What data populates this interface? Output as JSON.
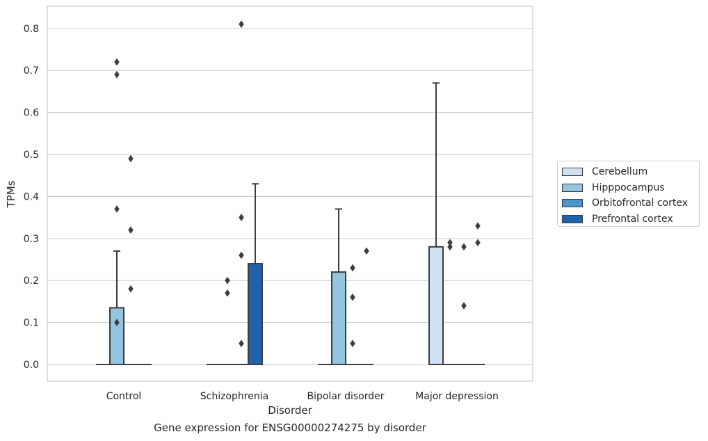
{
  "caption": "Gene expression for ENSG00000274275 by disorder",
  "chart_data": {
    "type": "box",
    "xlabel": "Disorder",
    "ylabel": "TPMs",
    "ylim": [
      -0.04,
      0.85
    ],
    "yticks": [
      "0.0",
      "0.1",
      "0.2",
      "0.3",
      "0.4",
      "0.5",
      "0.6",
      "0.7",
      "0.8"
    ],
    "ytick_values": [
      0.0,
      0.1,
      0.2,
      0.3,
      0.4,
      0.5,
      0.6,
      0.7,
      0.8
    ],
    "grid": true,
    "legend_position": "right",
    "categories": [
      "Control",
      "Schizophrenia",
      "Bipolar disorder",
      "Major depression"
    ],
    "series": [
      {
        "name": "Cerebellum",
        "color": "#d0e1f2",
        "boxes": [
          {
            "q1": 0,
            "median": 0,
            "q3": 0,
            "whislo": 0,
            "whishi": 0,
            "fliers": []
          },
          {
            "q1": 0,
            "median": 0,
            "q3": 0,
            "whislo": 0,
            "whishi": 0,
            "fliers": []
          },
          {
            "q1": 0,
            "median": 0,
            "q3": 0,
            "whislo": 0,
            "whishi": 0,
            "fliers": []
          },
          {
            "q1": 0,
            "median": 0,
            "q3": 0.28,
            "whislo": 0,
            "whishi": 0.67,
            "fliers": []
          }
        ]
      },
      {
        "name": "Hipppocampus",
        "color": "#94c4df",
        "boxes": [
          {
            "q1": 0,
            "median": 0,
            "q3": 0.135,
            "whislo": 0,
            "whishi": 0.27,
            "fliers": [
              0.69,
              0.72,
              0.37,
              0.1
            ]
          },
          {
            "q1": 0,
            "median": 0,
            "q3": 0,
            "whislo": 0,
            "whishi": 0,
            "fliers": [
              0.2,
              0.17
            ]
          },
          {
            "q1": 0,
            "median": 0,
            "q3": 0.22,
            "whislo": 0,
            "whishi": 0.37,
            "fliers": []
          },
          {
            "q1": 0,
            "median": 0,
            "q3": 0,
            "whislo": 0,
            "whishi": 0,
            "fliers": [
              0.28,
              0.29
            ]
          }
        ]
      },
      {
        "name": "Orbitofrontal cortex",
        "color": "#4a98c9",
        "boxes": [
          {
            "q1": 0,
            "median": 0,
            "q3": 0,
            "whislo": 0,
            "whishi": 0,
            "fliers": [
              0.49,
              0.32,
              0.18
            ]
          },
          {
            "q1": 0,
            "median": 0,
            "q3": 0,
            "whislo": 0,
            "whishi": 0,
            "fliers": [
              0.81,
              0.35,
              0.26,
              0.05
            ]
          },
          {
            "q1": 0,
            "median": 0,
            "q3": 0,
            "whislo": 0,
            "whishi": 0,
            "fliers": [
              0.23,
              0.16,
              0.05
            ]
          },
          {
            "q1": 0,
            "median": 0,
            "q3": 0,
            "whislo": 0,
            "whishi": 0,
            "fliers": [
              0.28,
              0.14
            ]
          }
        ]
      },
      {
        "name": "Prefrontal cortex",
        "color": "#2163aa",
        "boxes": [
          {
            "q1": 0,
            "median": 0,
            "q3": 0,
            "whislo": 0,
            "whishi": 0,
            "fliers": []
          },
          {
            "q1": 0,
            "median": 0,
            "q3": 0.24,
            "whislo": 0,
            "whishi": 0.43,
            "fliers": []
          },
          {
            "q1": 0,
            "median": 0,
            "q3": 0,
            "whislo": 0,
            "whishi": 0,
            "fliers": [
              0.27
            ]
          },
          {
            "q1": 0,
            "median": 0,
            "q3": 0,
            "whislo": 0,
            "whishi": 0,
            "fliers": [
              0.33,
              0.29
            ]
          }
        ]
      }
    ]
  }
}
